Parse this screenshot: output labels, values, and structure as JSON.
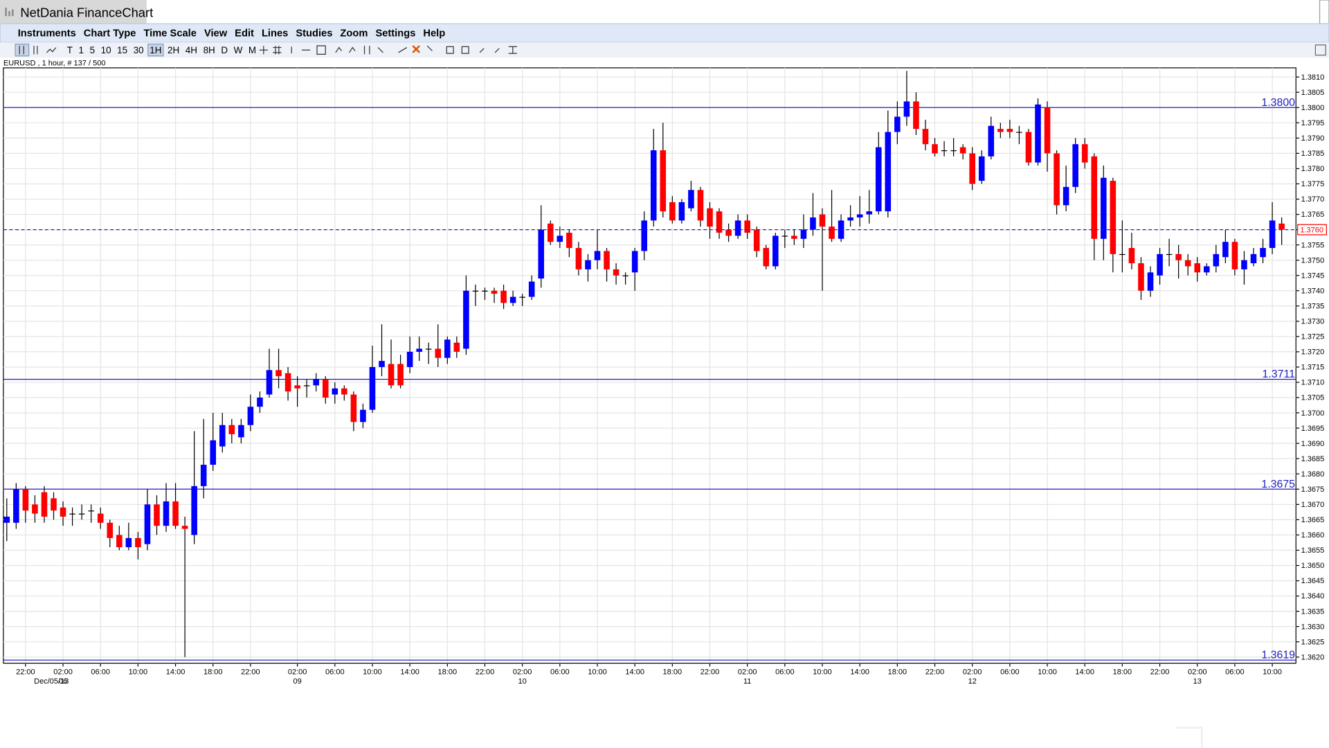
{
  "window": {
    "title": "NetDania FinanceChart"
  },
  "menu": [
    "Instruments",
    "Chart Type",
    "Time Scale",
    "View",
    "Edit",
    "Lines",
    "Studies",
    "Zoom",
    "Settings",
    "Help"
  ],
  "toolbar": [
    "T",
    "1",
    "5",
    "10",
    "15",
    "30",
    "1H",
    "2H",
    "4H",
    "8H",
    "D",
    "W",
    "M"
  ],
  "chart_data": {
    "type": "candlestick",
    "info": "EURUSD , 1 hour, # 137 / 500",
    "categories": [
      null,
      null,
      "22:00",
      null,
      null,
      null,
      "02:00",
      null,
      null,
      null,
      "06:00",
      null,
      null,
      null,
      "10:00",
      null,
      null,
      null,
      "14:00",
      null,
      null,
      null,
      "18:00",
      null,
      null,
      null,
      "22:00",
      null,
      null,
      null,
      null,
      "02:00",
      null,
      null,
      null,
      "06:00",
      null,
      null,
      null,
      "10:00",
      null,
      null,
      null,
      "14:00",
      null,
      null,
      null,
      "18:00",
      null,
      null,
      null,
      "22:00",
      null,
      null,
      null,
      "02:00",
      null,
      null,
      null,
      "06:00",
      null,
      null,
      null,
      "10:00",
      null,
      null,
      null,
      "14:00",
      null,
      null,
      null,
      "18:00",
      null,
      null,
      null,
      "22:00",
      null,
      null,
      null,
      "02:00",
      null,
      null,
      null,
      "06:00",
      null,
      null,
      null,
      "10:00",
      null,
      null,
      null,
      "14:00",
      null,
      null,
      null,
      "18:00",
      null,
      null,
      null,
      "22:00",
      null,
      null,
      null,
      "02:00",
      null,
      null,
      null,
      "06:00",
      null,
      null,
      null,
      "10:00",
      null,
      null,
      null,
      "14:00",
      null,
      null,
      null,
      "18:00",
      null,
      null,
      null,
      "22:00",
      null,
      null,
      null,
      "02:00",
      null,
      null,
      null,
      "06:00",
      null,
      null,
      null,
      "10:00",
      null
    ],
    "dates": [
      null,
      null,
      "Dec/05/13",
      null,
      null,
      null,
      "06",
      null,
      null,
      null,
      null,
      null,
      null,
      null,
      null,
      null,
      null,
      null,
      null,
      null,
      null,
      null,
      null,
      null,
      null,
      null,
      null,
      null,
      null,
      null,
      null,
      "09",
      null,
      null,
      null,
      null,
      null,
      null,
      null,
      null,
      null,
      null,
      null,
      null,
      null,
      null,
      null,
      null,
      null,
      null,
      null,
      null,
      null,
      null,
      null,
      "10",
      null,
      null,
      null,
      null,
      null,
      null,
      null,
      null,
      null,
      null,
      null,
      null,
      null,
      null,
      null,
      null,
      null,
      null,
      null,
      null,
      null,
      null,
      null,
      "11",
      null,
      null,
      null,
      null,
      null,
      null,
      null,
      null,
      null,
      null,
      null,
      null,
      null,
      null,
      null,
      null,
      null,
      null,
      null,
      null,
      null,
      null,
      null,
      "12",
      null,
      null,
      null,
      null,
      null,
      null,
      null,
      null,
      null,
      null,
      null,
      null,
      null,
      null,
      null,
      null,
      null,
      null,
      null,
      null,
      null,
      null,
      null,
      "13",
      null,
      null,
      null,
      null,
      null,
      null,
      null,
      null,
      null
    ],
    "open": [
      1.3664,
      1.3664,
      1.3675,
      1.367,
      1.3674,
      1.3672,
      1.3669,
      1.3667,
      1.3667,
      1.3668,
      1.3667,
      1.3664,
      1.366,
      1.3656,
      1.3659,
      1.3657,
      1.367,
      1.3663,
      1.3671,
      1.3663,
      1.366,
      1.3676,
      1.3683,
      1.3689,
      1.3696,
      1.3692,
      1.3696,
      1.3702,
      1.3706,
      1.3714,
      1.3713,
      1.3709,
      1.3709,
      1.3709,
      1.3711,
      1.3706,
      1.3708,
      1.3706,
      1.3697,
      1.3701,
      1.3715,
      1.3716,
      1.3716,
      1.3715,
      1.372,
      1.3721,
      1.3721,
      1.3718,
      1.3723,
      1.3721,
      1.374,
      1.374,
      1.374,
      1.374,
      1.3736,
      1.3738,
      1.3738,
      1.3744,
      1.3762,
      1.3756,
      1.3759,
      1.3754,
      1.3747,
      1.375,
      1.3753,
      1.3747,
      1.3745,
      1.3746,
      1.3753,
      1.3763,
      1.3786,
      1.3769,
      1.3763,
      1.3767,
      1.3773,
      1.3767,
      1.3766,
      1.376,
      1.3758,
      1.3763,
      1.376,
      1.3754,
      1.3748,
      1.3758,
      1.3758,
      1.3757,
      1.376,
      1.3765,
      1.3761,
      1.3757,
      1.3763,
      1.3764,
      1.3765,
      1.3766,
      1.3766,
      1.3792,
      1.3797,
      1.3802,
      1.3793,
      1.3788,
      1.3786,
      1.3786,
      1.3787,
      1.3785,
      1.3776,
      1.3784,
      1.3793,
      1.3793,
      1.3792,
      1.3792,
      1.3782,
      1.38,
      1.3785,
      1.3768,
      1.3774,
      1.3788,
      1.3784,
      1.3757,
      1.3776,
      1.3752,
      1.3754,
      1.3749,
      1.374,
      1.3745,
      1.3752,
      1.3752,
      1.375,
      1.3749,
      1.3746,
      1.3748,
      1.3751,
      1.3756,
      1.3747,
      1.3749,
      1.3751,
      1.3754,
      1.3762
    ],
    "high": [
      1.3672,
      1.3677,
      1.3676,
      1.3673,
      1.3676,
      1.3674,
      1.3671,
      1.3669,
      1.367,
      1.367,
      1.3669,
      1.3665,
      1.3663,
      1.3664,
      1.3661,
      1.3675,
      1.3673,
      1.3677,
      1.3677,
      1.3666,
      1.3694,
      1.3698,
      1.37,
      1.37,
      1.3698,
      1.3698,
      1.3706,
      1.3707,
      1.3721,
      1.3721,
      1.3715,
      1.3712,
      1.3711,
      1.3713,
      1.3712,
      1.371,
      1.3709,
      1.3707,
      1.3703,
      1.3722,
      1.3729,
      1.3724,
      1.3719,
      1.3725,
      1.3725,
      1.3723,
      1.3729,
      1.3725,
      1.3725,
      1.3745,
      1.3742,
      1.3741,
      1.3741,
      1.3742,
      1.374,
      1.3739,
      1.3745,
      1.3768,
      1.3763,
      1.3761,
      1.376,
      1.3756,
      1.3752,
      1.376,
      1.3754,
      1.3749,
      1.3746,
      1.3754,
      1.3766,
      1.3793,
      1.3795,
      1.3771,
      1.377,
      1.3776,
      1.3774,
      1.3769,
      1.3767,
      1.3762,
      1.3765,
      1.3765,
      1.3761,
      1.3755,
      1.3759,
      1.376,
      1.376,
      1.3765,
      1.3772,
      1.3767,
      1.3773,
      1.3765,
      1.3768,
      1.3771,
      1.3773,
      1.3792,
      1.3799,
      1.3802,
      1.3812,
      1.3805,
      1.3796,
      1.379,
      1.3789,
      1.379,
      1.3788,
      1.3787,
      1.3786,
      1.3797,
      1.3795,
      1.3796,
      1.3794,
      1.3793,
      1.3803,
      1.3802,
      1.3786,
      1.3781,
      1.379,
      1.379,
      1.3785,
      1.3781,
      1.3777,
      1.3763,
      1.3759,
      1.3751,
      1.3748,
      1.3754,
      1.3757,
      1.3755,
      1.3752,
      1.3751,
      1.3749,
      1.3755,
      1.376,
      1.3757,
      1.3753,
      1.3754,
      1.3757,
      1.3769,
      1.3764
    ],
    "low": [
      1.3658,
      1.3662,
      1.3664,
      1.3664,
      1.3664,
      1.3665,
      1.3663,
      1.3663,
      1.3665,
      1.3664,
      1.3662,
      1.3656,
      1.3655,
      1.3655,
      1.3652,
      1.3655,
      1.366,
      1.3661,
      1.3662,
      1.362,
      1.3657,
      1.3672,
      1.3681,
      1.3687,
      1.369,
      1.369,
      1.3694,
      1.37,
      1.3705,
      1.3708,
      1.3704,
      1.3702,
      1.3705,
      1.3707,
      1.3703,
      1.3703,
      1.3704,
      1.3694,
      1.3695,
      1.37,
      1.3712,
      1.3708,
      1.3708,
      1.3713,
      1.3717,
      1.3716,
      1.3715,
      1.3716,
      1.3718,
      1.3719,
      1.3735,
      1.3737,
      1.3736,
      1.3734,
      1.3735,
      1.3735,
      1.3737,
      1.3741,
      1.3755,
      1.3754,
      1.3751,
      1.3745,
      1.3743,
      1.3747,
      1.3743,
      1.3742,
      1.3742,
      1.374,
      1.375,
      1.3761,
      1.3764,
      1.3762,
      1.3762,
      1.3766,
      1.3761,
      1.3757,
      1.3757,
      1.3756,
      1.3757,
      1.3757,
      1.3751,
      1.3747,
      1.3747,
      1.3754,
      1.3755,
      1.3754,
      1.3758,
      1.374,
      1.3756,
      1.3756,
      1.3761,
      1.3761,
      1.3762,
      1.3765,
      1.3764,
      1.3788,
      1.3794,
      1.3791,
      1.3786,
      1.3784,
      1.3784,
      1.3784,
      1.3783,
      1.3773,
      1.3775,
      1.3783,
      1.379,
      1.379,
      1.3788,
      1.3781,
      1.3781,
      1.3779,
      1.3765,
      1.3766,
      1.3772,
      1.378,
      1.375,
      1.375,
      1.3746,
      1.3746,
      1.3747,
      1.3737,
      1.3738,
      1.3742,
      1.3748,
      1.3744,
      1.3745,
      1.3743,
      1.3745,
      1.3746,
      1.3749,
      1.3745,
      1.3742,
      1.3748,
      1.3749,
      1.3752,
      1.3755
    ],
    "close": [
      1.3666,
      1.3675,
      1.3668,
      1.3667,
      1.3666,
      1.3668,
      1.3666,
      1.3667,
      1.3667,
      1.3668,
      1.3664,
      1.3659,
      1.3656,
      1.3659,
      1.3656,
      1.367,
      1.3663,
      1.3671,
      1.3663,
      1.3662,
      1.3676,
      1.3683,
      1.3691,
      1.3696,
      1.3693,
      1.3696,
      1.3702,
      1.3705,
      1.3714,
      1.3712,
      1.3707,
      1.3708,
      1.3709,
      1.3711,
      1.3705,
      1.3708,
      1.3706,
      1.3697,
      1.3701,
      1.3715,
      1.3717,
      1.3709,
      1.3709,
      1.372,
      1.3721,
      1.3721,
      1.3718,
      1.3724,
      1.372,
      1.374,
      1.374,
      1.374,
      1.3739,
      1.3736,
      1.3738,
      1.3738,
      1.3743,
      1.376,
      1.3756,
      1.3758,
      1.3754,
      1.3747,
      1.375,
      1.3753,
      1.3747,
      1.3745,
      1.3745,
      1.3753,
      1.3763,
      1.3786,
      1.3766,
      1.3763,
      1.3769,
      1.3773,
      1.3763,
      1.3761,
      1.3759,
      1.3758,
      1.3763,
      1.3759,
      1.3753,
      1.3748,
      1.3758,
      1.3758,
      1.3757,
      1.376,
      1.3764,
      1.3761,
      1.3757,
      1.3763,
      1.3764,
      1.3765,
      1.3766,
      1.3787,
      1.3792,
      1.3797,
      1.3802,
      1.3793,
      1.3788,
      1.3785,
      1.3786,
      1.3786,
      1.3785,
      1.3775,
      1.3784,
      1.3794,
      1.3792,
      1.3792,
      1.3792,
      1.3782,
      1.3801,
      1.3785,
      1.3768,
      1.3774,
      1.3788,
      1.3782,
      1.3757,
      1.3777,
      1.3752,
      1.3752,
      1.3749,
      1.374,
      1.3746,
      1.3752,
      1.3752,
      1.375,
      1.3748,
      1.3746,
      1.3748,
      1.3752,
      1.3756,
      1.3747,
      1.375,
      1.3752,
      1.3754,
      1.3763,
      1.376
    ],
    "up_color": "#0000ff",
    "down_color": "#ff0000",
    "flat_color": "#000000",
    "ylim": [
      1.3618,
      1.3813
    ],
    "yticks": [
      {
        "value": 1.362,
        "label": "1.3620"
      },
      1.3625,
      {
        "value": 1.363,
        "label": "1.3630"
      },
      1.3635,
      {
        "value": 1.364,
        "label": "1.3640"
      },
      1.3645,
      {
        "value": 1.365,
        "label": "1.3650"
      },
      1.3655,
      {
        "value": 1.366,
        "label": "1.3660"
      },
      1.3665,
      {
        "value": 1.367,
        "label": "1.3670"
      },
      1.3675,
      {
        "value": 1.368,
        "label": "1.3680"
      },
      1.3685,
      {
        "value": 1.369,
        "label": "1.3690"
      },
      1.3695,
      {
        "value": 1.37,
        "label": "1.3700"
      },
      1.3705,
      {
        "value": 1.371,
        "label": "1.3710"
      },
      1.3715,
      {
        "value": 1.372,
        "label": "1.3720"
      },
      1.3725,
      {
        "value": 1.373,
        "label": "1.3730"
      },
      1.3735,
      {
        "value": 1.374,
        "label": "1.3740"
      },
      1.3745,
      {
        "value": 1.375,
        "label": "1.3750"
      },
      1.3755,
      {
        "value": 1.376,
        "label": "1.3760"
      },
      1.3765,
      {
        "value": 1.377,
        "label": "1.3770"
      },
      1.3775,
      {
        "value": 1.378,
        "label": "1.3780"
      },
      1.3785,
      {
        "value": 1.379,
        "label": "1.3790"
      },
      1.3795,
      {
        "value": 1.38,
        "label": "1.3800"
      },
      1.3805,
      {
        "value": 1.381,
        "label": "1.3810"
      }
    ],
    "grid": true,
    "hlines": [
      {
        "value": 1.38,
        "label": "1.3800"
      },
      1.3711,
      1.3675,
      1.3619
    ],
    "hline_color": "#2020c0",
    "current": {
      "value": 1.376,
      "label": "1.3760"
    }
  }
}
